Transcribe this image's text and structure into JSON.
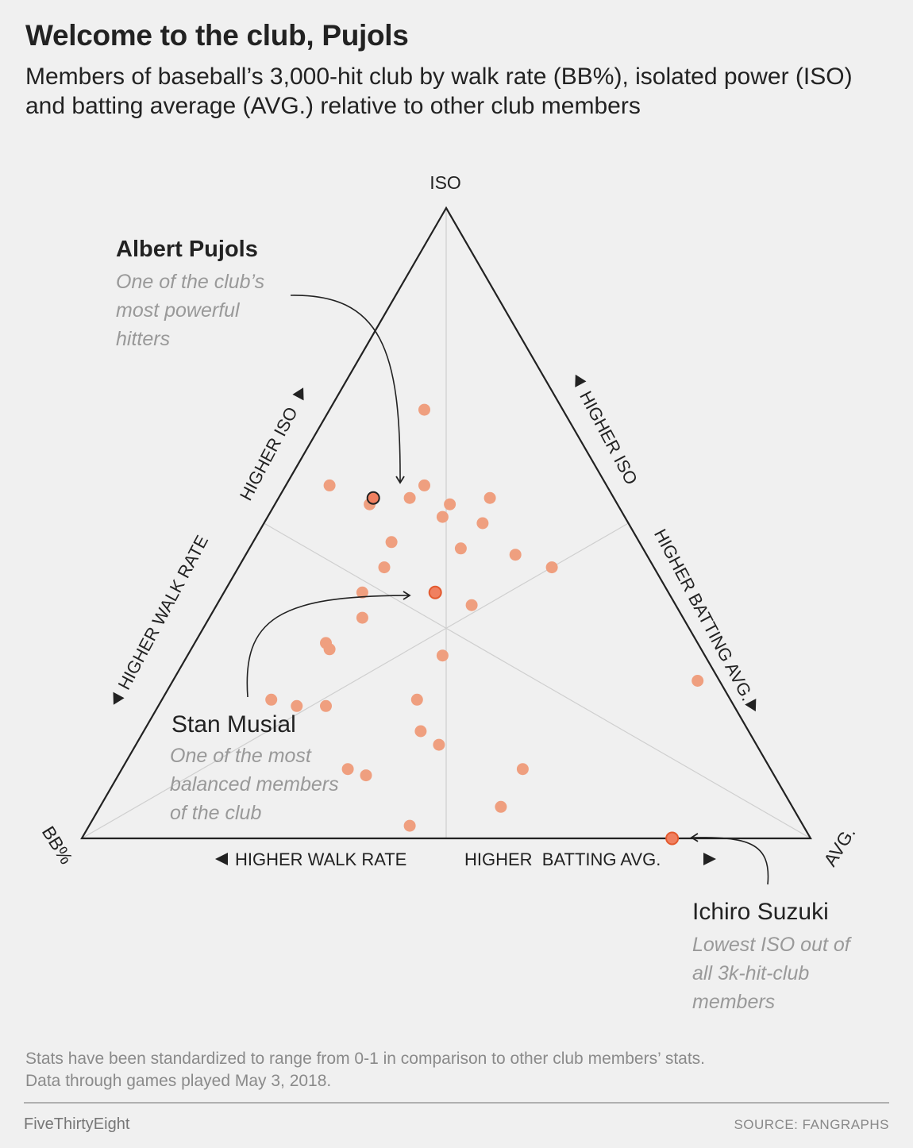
{
  "title": "Welcome to the club, Pujols",
  "subtitle": "Members of baseball’s 3,000-hit club by walk rate (BB%), isolated power (ISO) and batting average (AVG.) relative to other club members",
  "footnote_line1": "Stats have been standardized to range from 0-1 in comparison to other club members’ stats.",
  "footnote_line2": "Data through games played May 3, 2018.",
  "brand": "FiveThirtyEight",
  "source": "SOURCE: FANGRAPHS",
  "colors": {
    "point": "#ef9f7f",
    "highlight": "#f08060",
    "highlight_stroke": "#e35a2f",
    "pujols_stroke": "#222222",
    "axis": "#222222",
    "grid": "#cfcfcf",
    "annotation_gray": "#999999"
  },
  "chart_data": {
    "type": "ternary-scatter",
    "vertices": {
      "top": "ISO",
      "left": "BB%",
      "right": "AVG."
    },
    "axis_labels": {
      "left_edge_iso": "HIGHER ISO",
      "left_edge_walk": "HIGHER WALK RATE",
      "right_edge_iso": "HIGHER ISO",
      "right_edge_avg": "HIGHER BATTING AVG.",
      "bottom_walk": "HIGHER WALK RATE",
      "bottom_avg": "HIGHER  BATTING AVG."
    },
    "points": [
      {
        "bb": 0.19,
        "iso": 0.68,
        "avg": 0.13
      },
      {
        "bb": 0.38,
        "iso": 0.56,
        "avg": 0.06
      },
      {
        "bb": 0.34,
        "iso": 0.53,
        "avg": 0.13
      },
      {
        "bb": 0.28,
        "iso": 0.54,
        "avg": 0.18
      },
      {
        "bb": 0.25,
        "iso": 0.56,
        "avg": 0.19
      },
      {
        "bb": 0.23,
        "iso": 0.53,
        "avg": 0.24
      },
      {
        "bb": 0.25,
        "iso": 0.51,
        "avg": 0.24
      },
      {
        "bb": 0.2,
        "iso": 0.5,
        "avg": 0.3
      },
      {
        "bb": 0.17,
        "iso": 0.54,
        "avg": 0.29
      },
      {
        "bb": 0.25,
        "iso": 0.46,
        "avg": 0.29
      },
      {
        "bb": 0.34,
        "iso": 0.47,
        "avg": 0.19
      },
      {
        "bb": 0.37,
        "iso": 0.43,
        "avg": 0.2
      },
      {
        "bb": 0.18,
        "iso": 0.45,
        "avg": 0.37
      },
      {
        "bb": 0.42,
        "iso": 0.39,
        "avg": 0.19
      },
      {
        "bb": 0.44,
        "iso": 0.35,
        "avg": 0.21
      },
      {
        "bb": 0.51,
        "iso": 0.3,
        "avg": 0.19
      },
      {
        "bb": 0.51,
        "iso": 0.31,
        "avg": 0.18
      },
      {
        "bb": 0.14,
        "iso": 0.43,
        "avg": 0.43
      },
      {
        "bb": 0.28,
        "iso": 0.37,
        "avg": 0.35
      },
      {
        "bb": 0.36,
        "iso": 0.29,
        "avg": 0.35
      },
      {
        "bb": 0.63,
        "iso": 0.22,
        "avg": 0.15
      },
      {
        "bb": 0.6,
        "iso": 0.21,
        "avg": 0.19
      },
      {
        "bb": 0.56,
        "iso": 0.21,
        "avg": 0.23
      },
      {
        "bb": 0.43,
        "iso": 0.22,
        "avg": 0.35
      },
      {
        "bb": 0.45,
        "iso": 0.17,
        "avg": 0.38
      },
      {
        "bb": 0.44,
        "iso": 0.15,
        "avg": 0.42
      },
      {
        "bb": 0.34,
        "iso": 0.11,
        "avg": 0.55
      },
      {
        "bb": 0.58,
        "iso": 0.11,
        "avg": 0.31
      },
      {
        "bb": 0.56,
        "iso": 0.1,
        "avg": 0.34
      },
      {
        "bb": 0.4,
        "iso": 0.05,
        "avg": 0.55
      },
      {
        "bb": 0.54,
        "iso": 0.02,
        "avg": 0.44
      },
      {
        "bb": 0.03,
        "iso": 0.25,
        "avg": 0.72
      }
    ],
    "highlights": [
      {
        "name": "Albert Pujols",
        "note": "One of the club’s most powerful hitters",
        "bb": 0.33,
        "iso": 0.54,
        "avg": 0.13
      },
      {
        "name": "Stan Musial",
        "note": "One of the most balanced members of the club",
        "bb": 0.32,
        "iso": 0.39,
        "avg": 0.29
      },
      {
        "name": "Ichiro Suzuki",
        "note": "Lowest ISO out of all 3k-hit-club members",
        "bb": 0.19,
        "iso": 0.0,
        "avg": 0.81
      }
    ],
    "annotations": {
      "pujols_name": "Albert Pujols",
      "pujols_note": [
        "One of the club’s",
        "most powerful",
        "hitters"
      ],
      "musial_name": "Stan Musial",
      "musial_note": [
        "One of the most",
        "balanced members",
        "of the club"
      ],
      "ichiro_name": "Ichiro Suzuki",
      "ichiro_note": [
        "Lowest ISO out of",
        "all 3k-hit-club",
        "members"
      ]
    }
  }
}
